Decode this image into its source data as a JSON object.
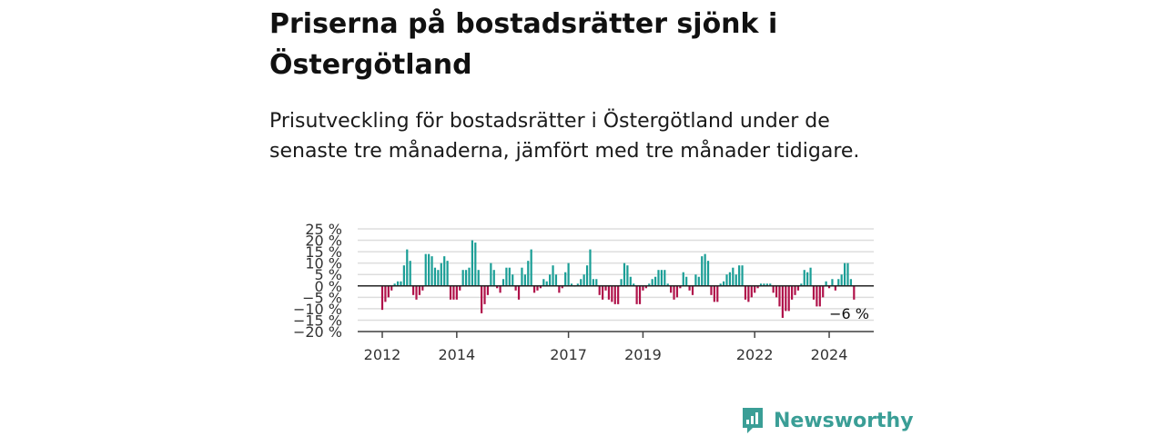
{
  "title": "Priserna på bostadsrätter sjönk i Östergötland",
  "subtitle": "Prisutveckling för bostadsrätter i Östergötland under de senaste tre månaderna, jämfört med tre månader tidigare.",
  "brand": {
    "name": "Newsworthy",
    "icon": "newsworthy-logo-icon",
    "color": "#3a9e96"
  },
  "colors": {
    "positive": "#1a9e96",
    "negative": "#b0124a",
    "grid": "#dddddd",
    "zero_line": "#222222"
  },
  "chart_data": {
    "type": "bar",
    "title": "",
    "xlabel": "",
    "ylabel": "",
    "ylim": [
      -20,
      25
    ],
    "y_ticks": [
      25,
      20,
      15,
      10,
      5,
      0,
      -5,
      -10,
      -15,
      -20
    ],
    "y_tick_labels": [
      "25 %",
      "20 %",
      "15 %",
      "10 %",
      "5 %",
      "0 %",
      "−5 %",
      "−10 %",
      "−15 %",
      "−20 %"
    ],
    "x_start": "2012-01",
    "frequency": "monthly",
    "x_ticks": [
      "2012",
      "2014",
      "2017",
      "2019",
      "2022",
      "2024"
    ],
    "grid": true,
    "annotation": {
      "text": "−6 %",
      "value": -6
    },
    "values": [
      -10.5,
      -7,
      -5,
      -2,
      1,
      2,
      2,
      9,
      16,
      11,
      -4,
      -6,
      -4,
      -2,
      14,
      14,
      13,
      8,
      7,
      10,
      13,
      11,
      -6,
      -6,
      -6,
      -2,
      7,
      7,
      8,
      20,
      19,
      7,
      -12,
      -8,
      -4,
      10,
      7,
      -1,
      -3,
      3,
      8,
      8,
      5,
      -2,
      -6,
      8,
      5,
      11,
      16,
      -3,
      -2,
      -1,
      3,
      2,
      5,
      9,
      5,
      -3,
      -1,
      6,
      10,
      1,
      0,
      1,
      3,
      5,
      9,
      16,
      3,
      3,
      -4,
      -6,
      -2,
      -6,
      -7,
      -8,
      -8,
      3,
      10,
      9,
      4,
      1,
      -8,
      -8,
      -2,
      -1,
      1,
      3,
      4,
      7,
      7,
      7,
      1,
      -3,
      -6,
      -5,
      -1,
      6,
      4,
      -2,
      -4,
      5,
      4,
      13,
      14,
      11,
      -4,
      -7,
      -7,
      1,
      2,
      5,
      6,
      8,
      5,
      9,
      9,
      -6,
      -7,
      -5,
      -3,
      -1,
      1,
      1,
      1,
      1,
      -3,
      -5,
      -9,
      -14,
      -11,
      -11,
      -6,
      -4,
      -2,
      1,
      7,
      6,
      8,
      -6,
      -9,
      -9,
      -5,
      2,
      -1,
      3,
      -2,
      3,
      5,
      10,
      10,
      3,
      -6
    ]
  }
}
